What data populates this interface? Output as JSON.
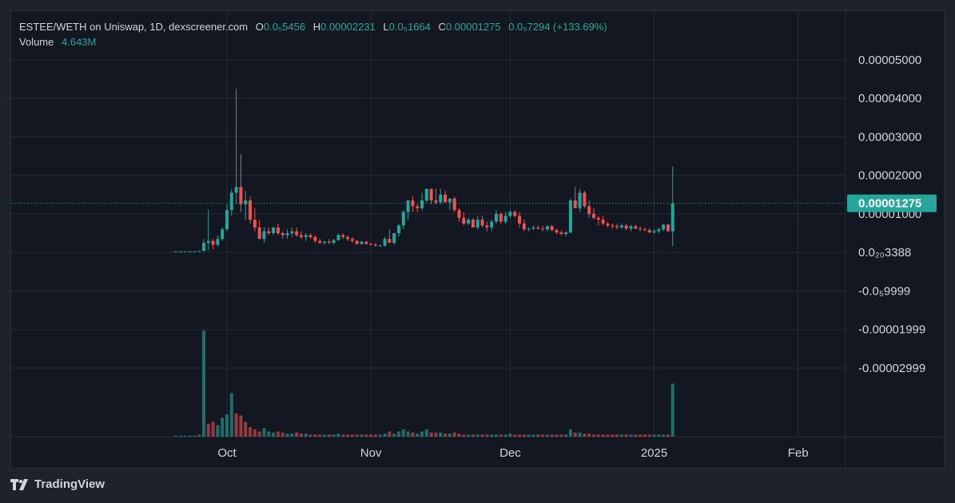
{
  "header": {
    "title": "ESTEE/WETH on Uniswap, 1D, dexscreener.com",
    "open_label": "O",
    "open_value": "0.0₅5456",
    "high_label": "H",
    "high_value": "0.00002231",
    "low_label": "L",
    "low_value": "0.0₅1664",
    "close_label": "C",
    "close_value": "0.00001275",
    "change_value": "0.0₅7294 (+133.69%)",
    "volume_label": "Volume",
    "volume_value": "4.643M"
  },
  "branding": {
    "name": "TradingView"
  },
  "colors": {
    "up": "#26a69a",
    "down": "#ef5350",
    "background": "#131722",
    "grid": "#262a35",
    "text": "#d1d4dc"
  },
  "chart_data": {
    "type": "candlestick",
    "title": "ESTEE/WETH on Uniswap, 1D, dexscreener.com",
    "x_tick_labels": [
      "Oct",
      "Nov",
      "Dec",
      "2025",
      "Feb"
    ],
    "x_tick_positions_days": [
      0,
      31,
      61,
      92,
      123
    ],
    "y_tick_labels": [
      "0.00005000",
      "0.00004000",
      "0.00003000",
      "0.00002000",
      "0.00001000",
      "0.0₂₀3388",
      "-0.0₅9999",
      "-0.00001999",
      "-0.00002999"
    ],
    "y_tick_values": [
      5e-05,
      4e-05,
      3e-05,
      2e-05,
      1e-05,
      0.0,
      -1e-05,
      -2e-05,
      -3e-05
    ],
    "ylim": [
      -3.85e-05,
      5.35e-05
    ],
    "last_price_label": "0.00001275",
    "last_price": 1.275e-05,
    "day_axis": "days from 1 Oct",
    "candles": [
      [
        -11,
        3e-07,
        3e-07,
        3e-07,
        3e-07
      ],
      [
        -10,
        3e-07,
        3e-07,
        3e-07,
        3e-07
      ],
      [
        -9,
        3e-07,
        3e-07,
        3e-07,
        3e-07
      ],
      [
        -8,
        3e-07,
        3e-07,
        3e-07,
        3e-07
      ],
      [
        -7,
        3e-07,
        3e-07,
        3e-07,
        3e-07
      ],
      [
        -6,
        3e-07,
        4e-07,
        3e-07,
        4e-07
      ],
      [
        -5,
        4e-07,
        3.5e-06,
        3e-07,
        2.5e-06
      ],
      [
        -4,
        2.5e-06,
        1.1e-05,
        5e-07,
        3e-06
      ],
      [
        -3,
        3e-06,
        3.5e-06,
        8e-07,
        2e-06
      ],
      [
        -2,
        2e-06,
        4.5e-06,
        1.5e-06,
        3.5e-06
      ],
      [
        -1,
        3.5e-06,
        6.5e-06,
        3e-06,
        6e-06
      ],
      [
        0,
        6e-06,
        1.25e-05,
        5.5e-06,
        1.1e-05
      ],
      [
        1,
        1.1e-05,
        1.65e-05,
        9.5e-06,
        1.55e-05
      ],
      [
        2,
        1.55e-05,
        4.25e-05,
        1.25e-05,
        1.7e-05
      ],
      [
        3,
        1.7e-05,
        2.55e-05,
        1.05e-05,
        1.25e-05
      ],
      [
        4,
        1.25e-05,
        1.6e-05,
        8.5e-06,
        1.35e-05
      ],
      [
        5,
        1.35e-05,
        1.45e-05,
        7.5e-06,
        8.5e-06
      ],
      [
        6,
        8.5e-06,
        1.15e-05,
        5.5e-06,
        6.5e-06
      ],
      [
        7,
        6.5e-06,
        8.5e-06,
        3.5e-06,
        3.5e-06
      ],
      [
        8,
        3.5e-06,
        6.5e-06,
        2.5e-06,
        5.5e-06
      ],
      [
        9,
        5.5e-06,
        6.5e-06,
        4.5e-06,
        5e-06
      ],
      [
        10,
        5e-06,
        6.5e-06,
        4.5e-06,
        6.5e-06
      ],
      [
        11,
        6.5e-06,
        7.5e-06,
        4.5e-06,
        5e-06
      ],
      [
        12,
        5e-06,
        5.5e-06,
        3.5e-06,
        4.5e-06
      ],
      [
        13,
        4.5e-06,
        6e-06,
        3.5e-06,
        5e-06
      ],
      [
        14,
        5e-06,
        6.5e-06,
        4e-06,
        5.5e-06
      ],
      [
        15,
        5.5e-06,
        6.5e-06,
        4e-06,
        4.5e-06
      ],
      [
        16,
        4.5e-06,
        5.5e-06,
        3.5e-06,
        4e-06
      ],
      [
        17,
        4e-06,
        5e-06,
        3e-06,
        4.5e-06
      ],
      [
        18,
        4.5e-06,
        5e-06,
        3.5e-06,
        4e-06
      ],
      [
        19,
        4e-06,
        4.5e-06,
        2.5e-06,
        3e-06
      ],
      [
        20,
        3e-06,
        3.5e-06,
        2.2e-06,
        2.5e-06
      ],
      [
        21,
        2.5e-06,
        3e-06,
        2e-06,
        2.8e-06
      ],
      [
        22,
        2.8e-06,
        3.5e-06,
        2.2e-06,
        2.5e-06
      ],
      [
        23,
        2.5e-06,
        3.5e-06,
        2e-06,
        3.2e-06
      ],
      [
        24,
        3.2e-06,
        5e-06,
        3e-06,
        4.5e-06
      ],
      [
        25,
        4.5e-06,
        5e-06,
        3.5e-06,
        4e-06
      ],
      [
        26,
        4e-06,
        4.5e-06,
        3e-06,
        3.5e-06
      ],
      [
        27,
        3.5e-06,
        4e-06,
        2.5e-06,
        3e-06
      ],
      [
        28,
        3e-06,
        3.2e-06,
        2e-06,
        2.2e-06
      ],
      [
        29,
        2.2e-06,
        3e-06,
        2e-06,
        2.8e-06
      ],
      [
        30,
        2.8e-06,
        3e-06,
        2e-06,
        2.2e-06
      ],
      [
        31,
        2.2e-06,
        2.5e-06,
        1.8e-06,
        2e-06
      ],
      [
        32,
        2e-06,
        2.5e-06,
        1.5e-06,
        1.8e-06
      ],
      [
        33,
        1.8e-06,
        2e-06,
        1.5e-06,
        1.8e-06
      ],
      [
        34,
        1.8e-06,
        4e-06,
        1.5e-06,
        3.5e-06
      ],
      [
        35,
        3.5e-06,
        6e-06,
        2.5e-06,
        2.5e-06
      ],
      [
        36,
        2.5e-06,
        5e-06,
        2e-06,
        5e-06
      ],
      [
        37,
        5e-06,
        7.5e-06,
        4e-06,
        7e-06
      ],
      [
        38,
        7e-06,
        1.1e-05,
        6e-06,
        1.05e-05
      ],
      [
        39,
        1.05e-05,
        1.35e-05,
        8.5e-06,
        1.35e-05
      ],
      [
        40,
        1.35e-05,
        1.45e-05,
        1.05e-05,
        1.2e-05
      ],
      [
        41,
        1.2e-05,
        1.25e-05,
        1.05e-05,
        1.15e-05
      ],
      [
        42,
        1.15e-05,
        1.55e-05,
        1.1e-05,
        1.35e-05
      ],
      [
        43,
        1.35e-05,
        1.65e-05,
        1.3e-05,
        1.65e-05
      ],
      [
        44,
        1.65e-05,
        1.65e-05,
        1.25e-05,
        1.35e-05
      ],
      [
        45,
        1.35e-05,
        1.65e-05,
        1.25e-05,
        1.3e-05
      ],
      [
        46,
        1.3e-05,
        1.65e-05,
        1.25e-05,
        1.5e-05
      ],
      [
        47,
        1.5e-05,
        1.6e-05,
        1.3e-05,
        1.3e-05
      ],
      [
        48,
        1.3e-05,
        1.4e-05,
        1.1e-05,
        1.4e-05
      ],
      [
        49,
        1.4e-05,
        1.45e-05,
        1.05e-05,
        1.1e-05
      ],
      [
        50,
        1.1e-05,
        1.15e-05,
        8e-06,
        9e-06
      ],
      [
        51,
        9e-06,
        1.05e-05,
        7e-06,
        7.5e-06
      ],
      [
        52,
        7.5e-06,
        9e-06,
        7e-06,
        8.5e-06
      ],
      [
        53,
        8.5e-06,
        9e-06,
        6.5e-06,
        6.5e-06
      ],
      [
        54,
        6.5e-06,
        9.5e-06,
        6e-06,
        8.5e-06
      ],
      [
        55,
        8.5e-06,
        9.5e-06,
        6.5e-06,
        7e-06
      ],
      [
        56,
        7e-06,
        8e-06,
        5.5e-06,
        6.5e-06
      ],
      [
        57,
        6.5e-06,
        8.5e-06,
        5.5e-06,
        8e-06
      ],
      [
        58,
        8e-06,
        1.1e-05,
        7.5e-06,
        1e-05
      ],
      [
        59,
        1e-05,
        1.05e-05,
        7.5e-06,
        8e-06
      ],
      [
        60,
        8e-06,
        1.05e-05,
        7.5e-06,
        9.5e-06
      ],
      [
        61,
        9.5e-06,
        1.1e-05,
        9e-06,
        1.05e-05
      ],
      [
        62,
        1.05e-05,
        1.1e-05,
        9e-06,
        9.5e-06
      ],
      [
        63,
        9.5e-06,
        1.05e-05,
        6.5e-06,
        7.5e-06
      ],
      [
        64,
        7.5e-06,
        8.5e-06,
        5.5e-06,
        6e-06
      ],
      [
        65,
        6e-06,
        6.5e-06,
        5.5e-06,
        6.2e-06
      ],
      [
        66,
        6.2e-06,
        7e-06,
        5.8e-06,
        6.5e-06
      ],
      [
        67,
        6.5e-06,
        7e-06,
        6e-06,
        6.2e-06
      ],
      [
        68,
        6.2e-06,
        7e-06,
        5.5e-06,
        6e-06
      ],
      [
        69,
        6e-06,
        7e-06,
        5.5e-06,
        6.8e-06
      ],
      [
        70,
        6.8e-06,
        7.2e-06,
        5.5e-06,
        5.8e-06
      ],
      [
        71,
        5.8e-06,
        6.2e-06,
        4.8e-06,
        5.2e-06
      ],
      [
        72,
        5.2e-06,
        5.8e-06,
        4.5e-06,
        4.8e-06
      ],
      [
        73,
        4.8e-06,
        5.5e-06,
        4.2e-06,
        5.2e-06
      ],
      [
        74,
        5.2e-06,
        1.4e-05,
        5e-06,
        1.35e-05
      ],
      [
        75,
        1.35e-05,
        1.7e-05,
        1.2e-05,
        1.15e-05
      ],
      [
        76,
        1.15e-05,
        1.65e-05,
        1.05e-05,
        1.55e-05
      ],
      [
        77,
        1.55e-05,
        1.6e-05,
        1.15e-05,
        1.2e-05
      ],
      [
        78,
        1.2e-05,
        1.35e-05,
        9e-06,
        1e-05
      ],
      [
        79,
        1e-05,
        1.15e-05,
        8.5e-06,
        9e-06
      ],
      [
        80,
        9e-06,
        9.5e-06,
        7e-06,
        8.5e-06
      ],
      [
        81,
        8.5e-06,
        9.5e-06,
        7e-06,
        7.5e-06
      ],
      [
        82,
        7.5e-06,
        8e-06,
        6.5e-06,
        7e-06
      ],
      [
        83,
        7e-06,
        7.5e-06,
        6.2e-06,
        6.8e-06
      ],
      [
        84,
        6.8e-06,
        7.5e-06,
        6e-06,
        6.5e-06
      ],
      [
        85,
        6.5e-06,
        7.5e-06,
        6e-06,
        7e-06
      ],
      [
        86,
        7e-06,
        7.5e-06,
        5.8e-06,
        6.2e-06
      ],
      [
        87,
        6.2e-06,
        7.2e-06,
        5.5e-06,
        6.8e-06
      ],
      [
        88,
        6.8e-06,
        7.2e-06,
        6e-06,
        6.2e-06
      ],
      [
        89,
        6.2e-06,
        6.8e-06,
        5.5e-06,
        6e-06
      ],
      [
        90,
        6e-06,
        6.5e-06,
        5.5e-06,
        5.8e-06
      ],
      [
        91,
        5.8e-06,
        6.2e-06,
        5e-06,
        5.2e-06
      ],
      [
        92,
        5.2e-06,
        6e-06,
        4.8e-06,
        5.5e-06
      ],
      [
        93,
        5.5e-06,
        6.5e-06,
        5e-06,
        6e-06
      ],
      [
        94,
        6e-06,
        7.5e-06,
        5.5e-06,
        7.2e-06
      ],
      [
        95,
        7.2e-06,
        7.5e-06,
        5.5e-06,
        5.5e-06
      ],
      [
        96,
        5.5e-06,
        2.231e-05,
        1.664e-06,
        1.275e-05
      ]
    ],
    "volume_scale": "relative",
    "volumes": [
      [
        -11,
        0.01,
        1
      ],
      [
        -10,
        0.01,
        1
      ],
      [
        -9,
        0.01,
        1
      ],
      [
        -8,
        0.01,
        1
      ],
      [
        -7,
        0.01,
        1
      ],
      [
        -6,
        0.02,
        1
      ],
      [
        -5,
        1.0,
        1
      ],
      [
        -4,
        0.12,
        0
      ],
      [
        -3,
        0.14,
        0
      ],
      [
        -2,
        0.11,
        1
      ],
      [
        -1,
        0.18,
        1
      ],
      [
        0,
        0.21,
        1
      ],
      [
        1,
        0.41,
        1
      ],
      [
        2,
        0.22,
        0
      ],
      [
        3,
        0.2,
        0
      ],
      [
        4,
        0.14,
        0
      ],
      [
        5,
        0.09,
        0
      ],
      [
        6,
        0.07,
        0
      ],
      [
        7,
        0.05,
        0
      ],
      [
        8,
        0.08,
        1
      ],
      [
        9,
        0.05,
        1
      ],
      [
        10,
        0.04,
        1
      ],
      [
        11,
        0.05,
        0
      ],
      [
        12,
        0.04,
        0
      ],
      [
        13,
        0.03,
        1
      ],
      [
        14,
        0.03,
        1
      ],
      [
        15,
        0.04,
        0
      ],
      [
        16,
        0.03,
        0
      ],
      [
        17,
        0.03,
        1
      ],
      [
        18,
        0.02,
        0
      ],
      [
        19,
        0.02,
        0
      ],
      [
        20,
        0.02,
        0
      ],
      [
        21,
        0.02,
        1
      ],
      [
        22,
        0.02,
        0
      ],
      [
        23,
        0.02,
        1
      ],
      [
        24,
        0.03,
        1
      ],
      [
        25,
        0.02,
        0
      ],
      [
        26,
        0.02,
        0
      ],
      [
        27,
        0.02,
        0
      ],
      [
        28,
        0.02,
        0
      ],
      [
        29,
        0.02,
        1
      ],
      [
        30,
        0.02,
        0
      ],
      [
        31,
        0.02,
        0
      ],
      [
        32,
        0.02,
        0
      ],
      [
        33,
        0.02,
        1
      ],
      [
        34,
        0.03,
        1
      ],
      [
        35,
        0.05,
        0
      ],
      [
        36,
        0.03,
        1
      ],
      [
        37,
        0.05,
        1
      ],
      [
        38,
        0.07,
        1
      ],
      [
        39,
        0.05,
        1
      ],
      [
        40,
        0.04,
        0
      ],
      [
        41,
        0.03,
        1
      ],
      [
        42,
        0.05,
        1
      ],
      [
        43,
        0.07,
        1
      ],
      [
        44,
        0.04,
        0
      ],
      [
        45,
        0.04,
        0
      ],
      [
        46,
        0.04,
        1
      ],
      [
        47,
        0.03,
        0
      ],
      [
        48,
        0.03,
        1
      ],
      [
        49,
        0.04,
        0
      ],
      [
        50,
        0.03,
        0
      ],
      [
        51,
        0.02,
        0
      ],
      [
        52,
        0.02,
        1
      ],
      [
        53,
        0.02,
        0
      ],
      [
        54,
        0.02,
        1
      ],
      [
        55,
        0.02,
        0
      ],
      [
        56,
        0.02,
        0
      ],
      [
        57,
        0.02,
        1
      ],
      [
        58,
        0.02,
        1
      ],
      [
        59,
        0.02,
        0
      ],
      [
        60,
        0.02,
        1
      ],
      [
        61,
        0.03,
        1
      ],
      [
        62,
        0.02,
        0
      ],
      [
        63,
        0.02,
        0
      ],
      [
        64,
        0.02,
        0
      ],
      [
        65,
        0.02,
        1
      ],
      [
        66,
        0.02,
        1
      ],
      [
        67,
        0.02,
        0
      ],
      [
        68,
        0.02,
        0
      ],
      [
        69,
        0.02,
        1
      ],
      [
        70,
        0.02,
        0
      ],
      [
        71,
        0.02,
        0
      ],
      [
        72,
        0.02,
        0
      ],
      [
        73,
        0.02,
        1
      ],
      [
        74,
        0.07,
        1
      ],
      [
        75,
        0.04,
        0
      ],
      [
        76,
        0.04,
        1
      ],
      [
        77,
        0.03,
        0
      ],
      [
        78,
        0.03,
        0
      ],
      [
        79,
        0.02,
        0
      ],
      [
        80,
        0.02,
        0
      ],
      [
        81,
        0.02,
        0
      ],
      [
        82,
        0.02,
        0
      ],
      [
        83,
        0.02,
        0
      ],
      [
        84,
        0.02,
        0
      ],
      [
        85,
        0.02,
        1
      ],
      [
        86,
        0.02,
        0
      ],
      [
        87,
        0.02,
        1
      ],
      [
        88,
        0.02,
        0
      ],
      [
        89,
        0.02,
        0
      ],
      [
        90,
        0.02,
        0
      ],
      [
        91,
        0.02,
        0
      ],
      [
        92,
        0.02,
        1
      ],
      [
        93,
        0.02,
        1
      ],
      [
        94,
        0.02,
        1
      ],
      [
        95,
        0.02,
        0
      ],
      [
        96,
        0.5,
        1
      ]
    ]
  }
}
